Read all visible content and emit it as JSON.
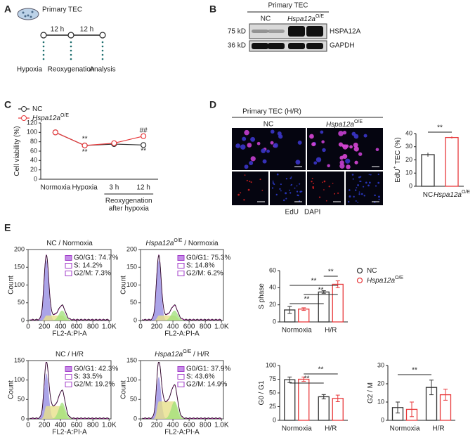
{
  "panel_labels": [
    "A",
    "B",
    "C",
    "D",
    "E"
  ],
  "panel_a": {
    "title": "Primary TEC",
    "intervals": [
      "12 h",
      "12 h"
    ],
    "steps": [
      "Hypoxia",
      "Reoxygenation",
      "Analysis"
    ]
  },
  "panel_b": {
    "group": "Primary TEC",
    "lanes": [
      "NC",
      "Hspa12a"
    ],
    "lane_sup": "O/E",
    "markers": [
      "75 kD",
      "36 kD"
    ],
    "proteins": [
      "HSPA12A",
      "GAPDH"
    ]
  },
  "panel_d": {
    "title": "Primary TEC (H/R)",
    "columns": [
      "NC",
      "Hspa12a"
    ],
    "column_sup": "O/E",
    "stains": [
      "EdU",
      "DAPI"
    ],
    "stain_colors": [
      "#e0262b",
      "#2a3fd6"
    ]
  },
  "histograms": [
    {
      "title": {
        "name": "NC",
        "suffix": " / Normoxia"
      },
      "ylabel": "Count",
      "xlabel": "FL2-A:PI-A",
      "ylim": [
        0,
        200
      ],
      "yticks": [
        0,
        50,
        100,
        150,
        200
      ],
      "xlim": [
        0,
        1024
      ],
      "xticks": [
        0,
        200,
        400,
        600,
        800,
        {
          "value": 1000,
          "label": "1.0K"
        }
      ],
      "stats": [
        "G0/G1: 74.7%",
        "S: 14.2%",
        "G2/M: 7.3%"
      ]
    },
    {
      "title": {
        "name": "Hspa12a",
        "sup": "O/E",
        "suffix": " / Normoxia"
      },
      "ylabel": "Count",
      "xlabel": "FL2-A:PI-A",
      "ylim": [
        0,
        200
      ],
      "yticks": [
        0,
        50,
        100,
        150,
        200
      ],
      "xlim": [
        0,
        1024
      ],
      "xticks": [
        0,
        200,
        400,
        600,
        800,
        {
          "value": 1000,
          "label": "1.0K"
        }
      ],
      "stats": [
        "G0/G1: 75.3%",
        "S: 14.8%",
        "G2/M: 6.2%"
      ]
    },
    {
      "title": {
        "name": "NC",
        "suffix": " / H/R"
      },
      "ylabel": "Count",
      "xlabel": "FL2-A:PI-A",
      "ylim": [
        0,
        150
      ],
      "yticks": [
        0,
        50,
        100,
        150
      ],
      "xlim": [
        0,
        1024
      ],
      "xticks": [
        0,
        200,
        400,
        600,
        800,
        {
          "value": 1000,
          "label": "1.0K"
        }
      ],
      "stats": [
        "G0/G1: 42.3%",
        "S: 33.5%",
        "G2/M: 19.2%"
      ]
    },
    {
      "title": {
        "name": "Hspa12a",
        "sup": "O/E",
        "suffix": " / H/R"
      },
      "ylabel": "Count",
      "xlabel": "FL2-A:PI-A",
      "ylim": [
        0,
        150
      ],
      "yticks": [
        0,
        50,
        100,
        150
      ],
      "xlim": [
        0,
        1024
      ],
      "xticks": [
        0,
        200,
        400,
        600,
        800,
        {
          "value": 1000,
          "label": "1.0K"
        }
      ],
      "stats": [
        "G0/G1: 37.9%",
        "S: 43.6%",
        "G2/M: 14.9%"
      ]
    }
  ],
  "chart_data": [
    {
      "type": "line",
      "ylabel": "Cell viability (%)",
      "categories": [
        "Normoxia",
        "Hypoxia",
        "3 h",
        "12 h"
      ],
      "group_label": [
        "Reoxygenation",
        "after hypoxia"
      ],
      "ylim": [
        0,
        120
      ],
      "yticks": [
        0,
        20,
        40,
        60,
        80,
        100,
        120
      ],
      "series": [
        {
          "name": "NC",
          "color": "#333333",
          "values": [
            100,
            72,
            75,
            73
          ],
          "errors": [
            3,
            2,
            3,
            2
          ]
        },
        {
          "name": "Hspa12a",
          "name_sup": "O/E",
          "color": "#e8393b",
          "values": [
            100,
            72,
            77,
            92
          ],
          "errors": [
            3,
            2,
            3,
            4
          ]
        }
      ],
      "annotations": [
        "**",
        "**",
        "##",
        "**"
      ],
      "annotation_colors": [
        "#222222",
        "#222222",
        "#e8393b",
        "#222222"
      ]
    },
    {
      "type": "bar",
      "ylabel": "EdU",
      "ylabel_sup": "+",
      "ylabel_suffix": " TEC (%)",
      "categories": [
        "NC",
        "Hspa12a"
      ],
      "category_sup": "O/E",
      "values": [
        24,
        37
      ],
      "errors": [
        1.5,
        0.8
      ],
      "colors": [
        "#333333",
        "#e8393b"
      ],
      "ylim": [
        0,
        40
      ],
      "yticks": [
        0,
        10,
        20,
        30,
        40
      ],
      "annotations": [
        "**"
      ]
    },
    {
      "type": "grouped_bar",
      "ylabel": "S phase",
      "categories": [
        "Normoxia",
        "H/R"
      ],
      "ylim": [
        0,
        60
      ],
      "yticks": [
        0,
        20,
        40,
        60
      ],
      "legend": true,
      "series": [
        {
          "name": "NC",
          "color": "#333333",
          "values": [
            14,
            35
          ],
          "errors": [
            4,
            1.5
          ]
        },
        {
          "name": "Hspa12a",
          "name_sup": "O/E",
          "color": "#e8393b",
          "values": [
            15,
            44
          ],
          "errors": [
            1.5,
            4
          ]
        }
      ],
      "annotations": [
        "**",
        "**",
        "**",
        "**"
      ]
    },
    {
      "type": "grouped_bar",
      "ylabel": "G0 / G1",
      "categories": [
        "Normoxia",
        "H/R"
      ],
      "ylim": [
        0,
        100
      ],
      "yticks": [
        0,
        25,
        50,
        75,
        100
      ],
      "series": [
        {
          "color": "#333333",
          "values": [
            74,
            43
          ],
          "errors": [
            5,
            4
          ]
        },
        {
          "color": "#e8393b",
          "values": [
            75,
            40
          ],
          "errors": [
            4,
            6
          ]
        }
      ],
      "annotations": [
        "**",
        "**"
      ]
    },
    {
      "type": "grouped_bar",
      "ylabel": "G2 / M",
      "categories": [
        "Normoxia",
        "H/R"
      ],
      "ylim": [
        0,
        30
      ],
      "yticks": [
        0,
        10,
        20,
        30
      ],
      "series": [
        {
          "color": "#333333",
          "values": [
            7,
            18
          ],
          "errors": [
            3,
            4
          ]
        },
        {
          "color": "#e8393b",
          "values": [
            6,
            14
          ],
          "errors": [
            4,
            3
          ]
        }
      ],
      "annotations": [
        "**"
      ]
    }
  ]
}
